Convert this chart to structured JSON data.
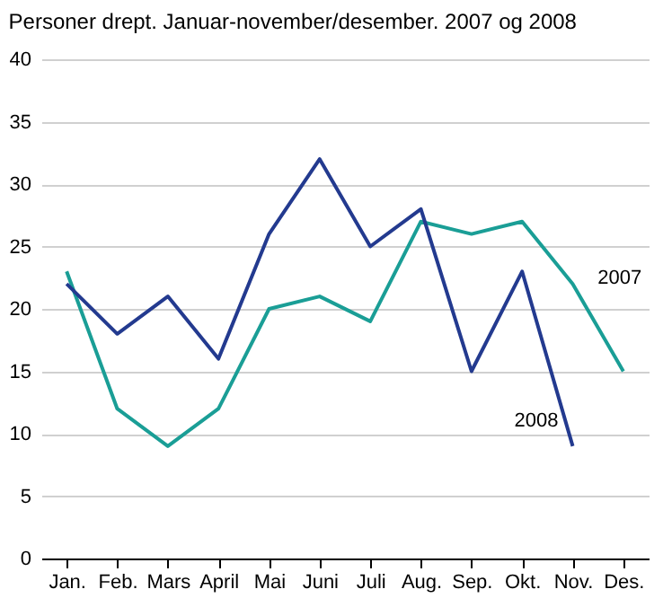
{
  "chart_data": {
    "type": "line",
    "title": "Personer drept. Januar-november/desember. 2007 og 2008",
    "categories": [
      "Jan.",
      "Feb.",
      "Mars",
      "April",
      "Mai",
      "Juni",
      "Juli",
      "Aug.",
      "Sep.",
      "Okt.",
      "Nov.",
      "Des."
    ],
    "series": [
      {
        "name": "2007",
        "color": "#1a9e96",
        "values": [
          23,
          12,
          9,
          12,
          20,
          21,
          19,
          27,
          26,
          27,
          22,
          15
        ]
      },
      {
        "name": "2008",
        "color": "#233a8f",
        "values": [
          22,
          18,
          21,
          16,
          26,
          32,
          25,
          28,
          15,
          23,
          9,
          null
        ]
      }
    ],
    "ylim": [
      0,
      40
    ],
    "yticks": [
      0,
      5,
      10,
      15,
      20,
      25,
      30,
      35,
      40
    ],
    "grid": "y",
    "marker": "none",
    "line_style": "solid"
  }
}
